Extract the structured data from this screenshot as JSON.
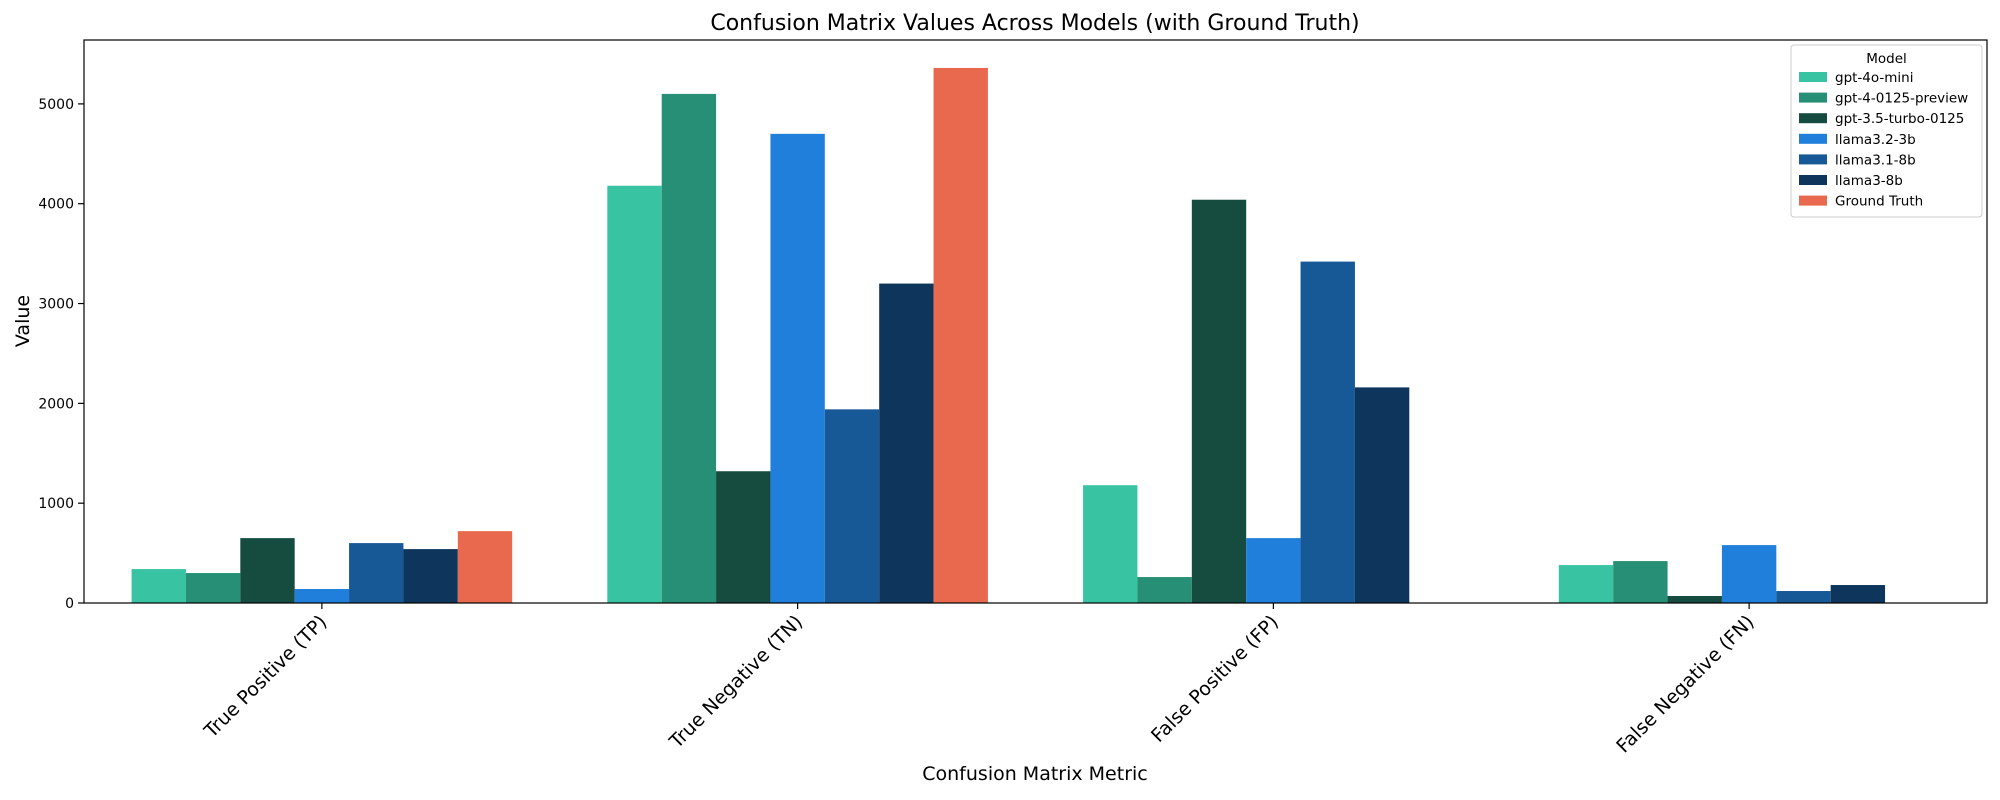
{
  "chart_data": {
    "type": "bar",
    "title": "Confusion Matrix Values Across Models (with Ground Truth)",
    "xlabel": "Confusion Matrix Metric",
    "ylabel": "Value",
    "ylim": [
      0,
      5640
    ],
    "yticks": [
      0,
      1000,
      2000,
      3000,
      4000,
      5000
    ],
    "grid": false,
    "legend_title": "Model",
    "legend_position": "top-right",
    "categories": [
      "True Positive (TP)",
      "True Negative (TN)",
      "False Positive (FP)",
      "False Negative (FN)"
    ],
    "series": [
      {
        "name": "gpt-4o-mini",
        "color": "#38C4A2",
        "values": [
          340,
          4180,
          1180,
          380
        ]
      },
      {
        "name": "gpt-4-0125-preview",
        "color": "#288F77",
        "values": [
          300,
          5100,
          260,
          420
        ]
      },
      {
        "name": "gpt-3.5-turbo-0125",
        "color": "#164C40",
        "values": [
          650,
          1320,
          4040,
          70
        ]
      },
      {
        "name": "llama3.2-3b",
        "color": "#1F7FDB",
        "values": [
          140,
          4700,
          650,
          580
        ]
      },
      {
        "name": "llama3.1-8b",
        "color": "#175896",
        "values": [
          600,
          1940,
          3420,
          120
        ]
      },
      {
        "name": "llama3-8b",
        "color": "#0E355C",
        "values": [
          540,
          3200,
          2160,
          180
        ]
      },
      {
        "name": "Ground Truth",
        "color": "#E8694E",
        "values": [
          720,
          5360,
          null,
          null
        ]
      }
    ]
  }
}
